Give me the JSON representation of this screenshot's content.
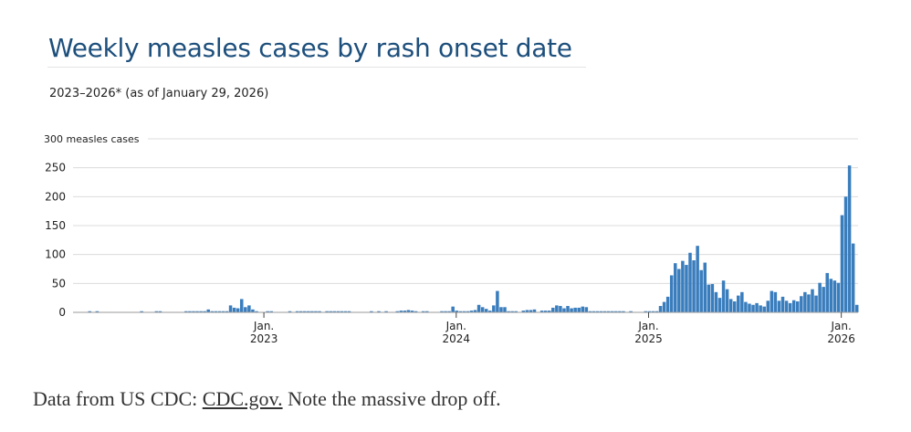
{
  "chart_data": {
    "type": "bar",
    "title": "Weekly measles cases by rash onset date",
    "subtitle": "2023–2026* (as of January 29, 2026)",
    "ylabel": "300 measles cases",
    "xlabel": "",
    "ylim": [
      0,
      300
    ],
    "yticks": [
      "0",
      "50",
      "100",
      "150",
      "200",
      "250"
    ],
    "xticks": [
      {
        "week_index": 51.5,
        "line1": "Jan.",
        "line2": "2023"
      },
      {
        "week_index": 103.4,
        "line1": "Jan.",
        "line2": "2024"
      },
      {
        "week_index": 155.3,
        "line1": "Jan.",
        "line2": "2025"
      },
      {
        "week_index": 207.3,
        "line1": "Jan.",
        "line2": "2026"
      }
    ],
    "grid": true,
    "bar_color": "#3a7dbd",
    "values": [
      0,
      0,
      0,
      0,
      2,
      0,
      2,
      0,
      0,
      0,
      0,
      0,
      0,
      0,
      0,
      0,
      0,
      0,
      2,
      0,
      0,
      0,
      2,
      2,
      0,
      0,
      0,
      0,
      0,
      0,
      2,
      2,
      2,
      2,
      2,
      2,
      5,
      2,
      2,
      2,
      2,
      2,
      12,
      8,
      7,
      23,
      9,
      12,
      5,
      2,
      0,
      0,
      2,
      2,
      0,
      0,
      0,
      0,
      2,
      0,
      2,
      2,
      2,
      2,
      2,
      2,
      2,
      0,
      2,
      2,
      2,
      2,
      2,
      2,
      2,
      0,
      0,
      0,
      0,
      0,
      2,
      0,
      2,
      0,
      2,
      0,
      0,
      2,
      3,
      3,
      4,
      3,
      2,
      0,
      2,
      2,
      0,
      0,
      0,
      2,
      2,
      2,
      10,
      3,
      2,
      2,
      2,
      3,
      4,
      13,
      9,
      6,
      3,
      12,
      37,
      9,
      9,
      2,
      2,
      2,
      0,
      3,
      4,
      4,
      5,
      0,
      3,
      3,
      3,
      8,
      12,
      11,
      7,
      11,
      7,
      8,
      8,
      10,
      9,
      2,
      2,
      2,
      2,
      2,
      2,
      2,
      2,
      2,
      2,
      0,
      2,
      0,
      0,
      0,
      2,
      2,
      2,
      2,
      11,
      18,
      27,
      64,
      85,
      75,
      89,
      82,
      103,
      90,
      115,
      73,
      86,
      48,
      49,
      35,
      25,
      55,
      40,
      23,
      19,
      29,
      35,
      18,
      15,
      13,
      16,
      12,
      10,
      20,
      37,
      35,
      20,
      27,
      20,
      16,
      21,
      19,
      28,
      35,
      31,
      40,
      29,
      51,
      44,
      68,
      58,
      55,
      51,
      168,
      200,
      254,
      119,
      13
    ]
  },
  "caption": {
    "prefix": "Data from US CDC: ",
    "link": "CDC.gov.",
    "suffix": " Note the massive drop off."
  }
}
